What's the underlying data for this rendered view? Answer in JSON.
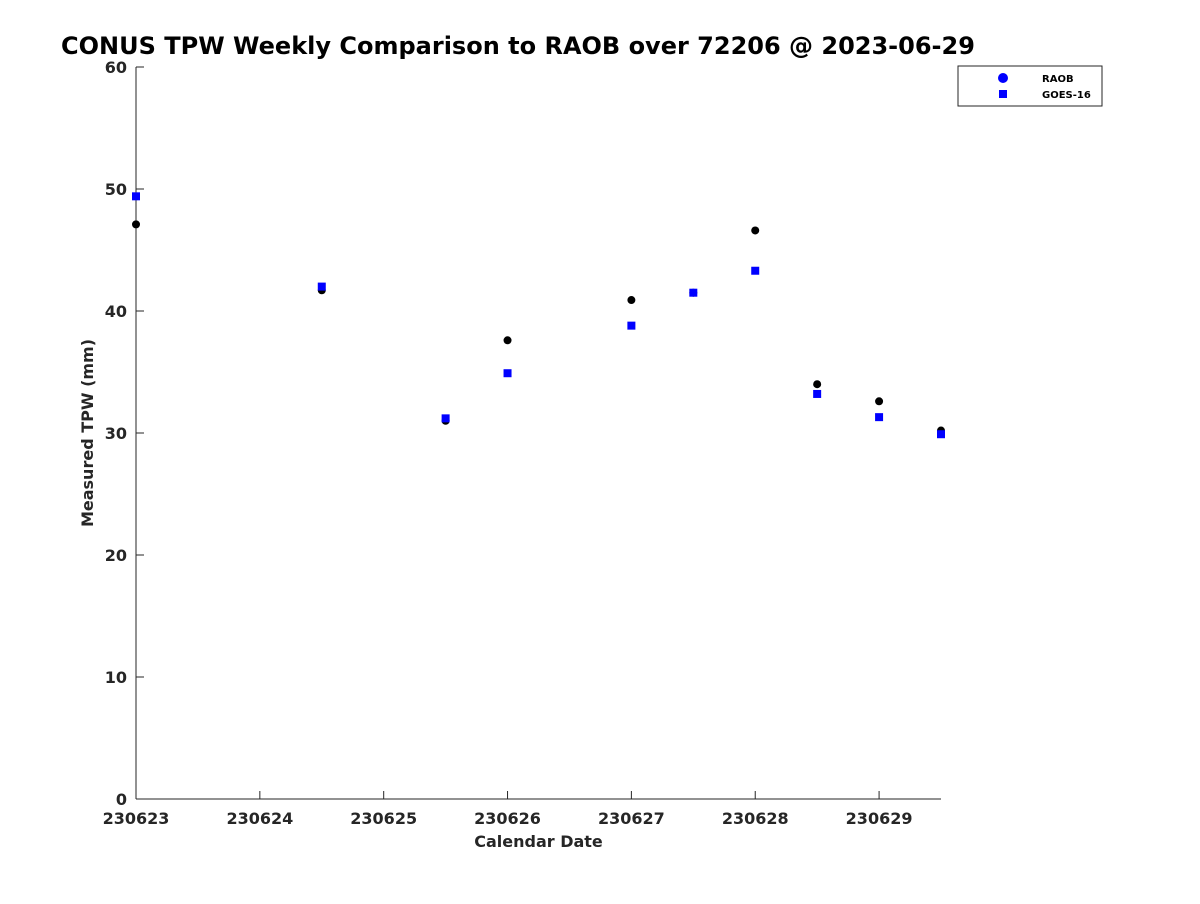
{
  "chart_data": {
    "type": "scatter",
    "title": "CONUS TPW Weekly Comparison to RAOB over 72206 @ 2023-06-29",
    "xlabel": "Calendar Date",
    "ylabel": "Measured TPW (mm)",
    "xlim": [
      230623,
      230629.5
    ],
    "ylim": [
      0,
      60
    ],
    "x_ticks": [
      {
        "value": 230623,
        "label": "230623"
      },
      {
        "value": 230624,
        "label": "230624"
      },
      {
        "value": 230625,
        "label": "230625"
      },
      {
        "value": 230626,
        "label": "230626"
      },
      {
        "value": 230627,
        "label": "230627"
      },
      {
        "value": 230628,
        "label": "230628"
      },
      {
        "value": 230629,
        "label": "230629"
      }
    ],
    "y_ticks": [
      0,
      10,
      20,
      30,
      40,
      50,
      60
    ],
    "grid": false,
    "legend_position": "top-right",
    "legend": [
      {
        "name": "RAOB",
        "marker": "circle",
        "color": "#0000ff"
      },
      {
        "name": "GOES-16",
        "marker": "square",
        "color": "#0000ff"
      }
    ],
    "series": [
      {
        "name": "RAOB",
        "marker": "circle",
        "color": "#000000",
        "points": [
          {
            "x": 230623.0,
            "y": 47.1
          },
          {
            "x": 230624.5,
            "y": 41.7
          },
          {
            "x": 230625.5,
            "y": 31.0
          },
          {
            "x": 230626.0,
            "y": 37.6
          },
          {
            "x": 230627.0,
            "y": 40.9
          },
          {
            "x": 230627.5,
            "y": 41.5
          },
          {
            "x": 230628.0,
            "y": 46.6
          },
          {
            "x": 230628.5,
            "y": 34.0
          },
          {
            "x": 230629.0,
            "y": 32.6
          },
          {
            "x": 230629.5,
            "y": 30.2
          }
        ]
      },
      {
        "name": "GOES-16",
        "marker": "square",
        "color": "#0000ff",
        "points": [
          {
            "x": 230623.0,
            "y": 49.4
          },
          {
            "x": 230624.5,
            "y": 42.0
          },
          {
            "x": 230625.5,
            "y": 31.2
          },
          {
            "x": 230626.0,
            "y": 34.9
          },
          {
            "x": 230627.0,
            "y": 38.8
          },
          {
            "x": 230627.5,
            "y": 41.5
          },
          {
            "x": 230628.0,
            "y": 43.3
          },
          {
            "x": 230628.5,
            "y": 33.2
          },
          {
            "x": 230629.0,
            "y": 31.3
          },
          {
            "x": 230629.5,
            "y": 29.9
          }
        ]
      }
    ]
  }
}
